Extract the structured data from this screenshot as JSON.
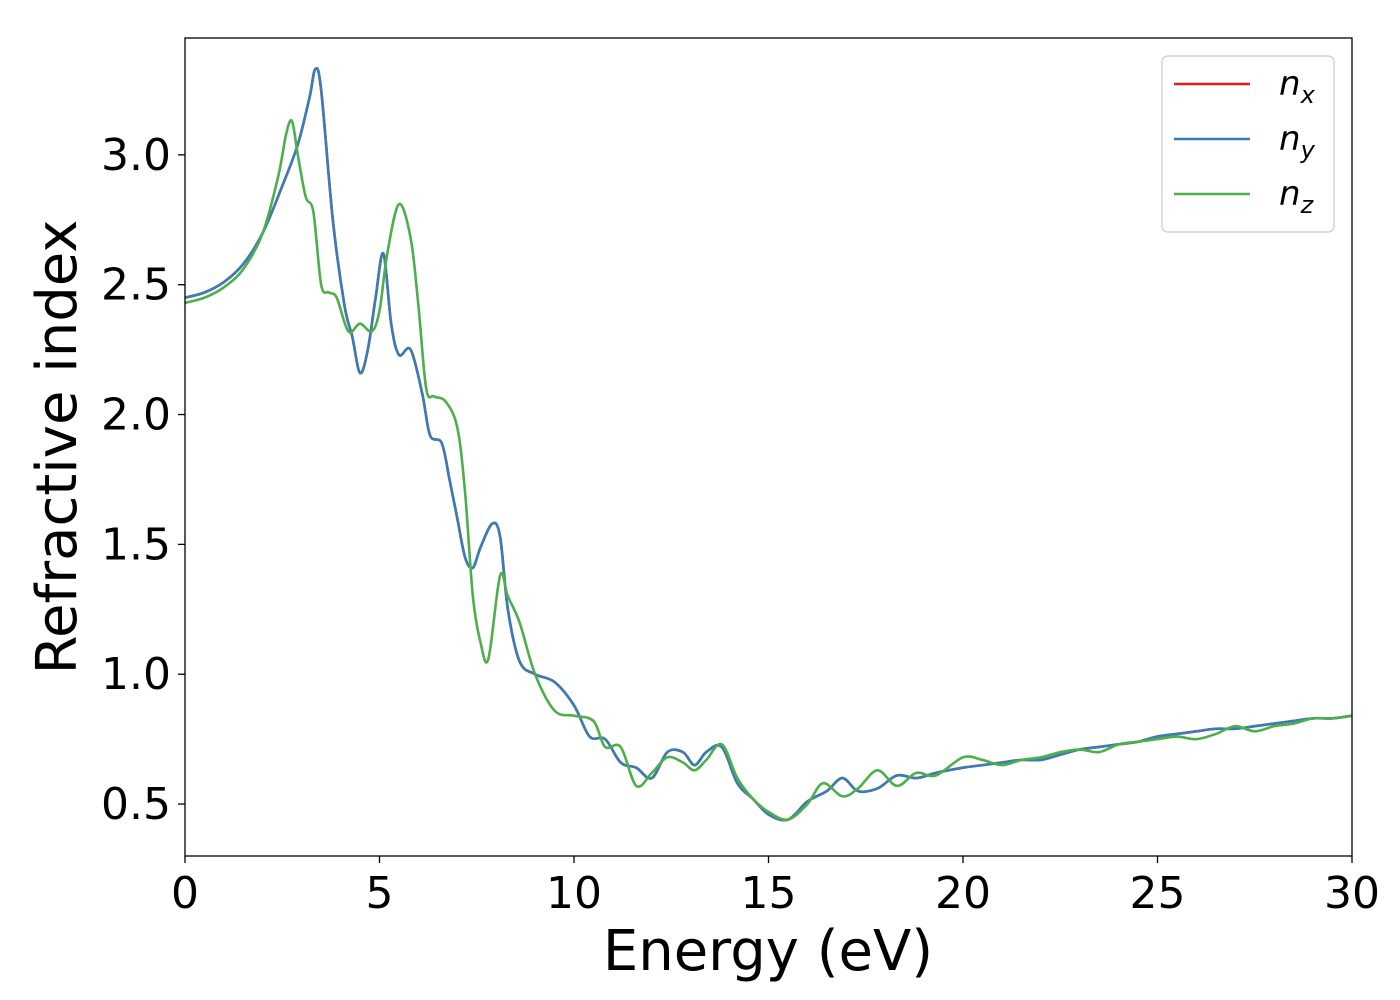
{
  "chart_data": {
    "type": "line",
    "title": "",
    "xlabel": "Energy (eV)",
    "ylabel": "Refractive index",
    "xlim": [
      0,
      30
    ],
    "ylim": [
      0.3,
      3.45
    ],
    "xticks": [
      0,
      5,
      10,
      15,
      20,
      25,
      30
    ],
    "xtick_labels": [
      "0",
      "5",
      "10",
      "15",
      "20",
      "25",
      "30"
    ],
    "yticks": [
      0.5,
      1.0,
      1.5,
      2.0,
      2.5,
      3.0
    ],
    "ytick_labels": [
      "0.5",
      "1.0",
      "1.5",
      "2.0",
      "2.5",
      "3.0"
    ],
    "grid": false,
    "legend_position": "top-right",
    "series": [
      {
        "name": "n",
        "subscript": "x",
        "color": "#e41a1c",
        "x": [
          0,
          0.5,
          1.0,
          1.5,
          2.0,
          2.5,
          2.9,
          3.2,
          3.35,
          3.5,
          3.8,
          4.1,
          4.3,
          4.5,
          4.7,
          4.9,
          5.1,
          5.3,
          5.5,
          5.8,
          6.1,
          6.3,
          6.6,
          6.8,
          7.0,
          7.2,
          7.4,
          7.6,
          7.9,
          8.1,
          8.3,
          8.6,
          9.0,
          9.5,
          10.0,
          10.4,
          10.8,
          11.2,
          11.6,
          12.0,
          12.4,
          12.8,
          13.1,
          13.4,
          13.8,
          14.2,
          14.6,
          15.0,
          15.5,
          16.0,
          16.5,
          16.9,
          17.3,
          17.8,
          18.3,
          18.8,
          19.3,
          20.0,
          20.5,
          21.0,
          21.5,
          22.0,
          22.5,
          23.0,
          23.5,
          24.0,
          24.5,
          25.0,
          25.5,
          26.0,
          26.5,
          27.0,
          27.5,
          28.0,
          28.5,
          29.0,
          29.5,
          30.0
        ],
        "y": [
          2.45,
          2.47,
          2.51,
          2.58,
          2.7,
          2.88,
          3.04,
          3.22,
          3.33,
          3.25,
          2.75,
          2.42,
          2.3,
          2.16,
          2.25,
          2.45,
          2.62,
          2.35,
          2.23,
          2.25,
          2.08,
          1.92,
          1.89,
          1.75,
          1.6,
          1.45,
          1.41,
          1.49,
          1.58,
          1.53,
          1.25,
          1.05,
          1.0,
          0.97,
          0.88,
          0.76,
          0.75,
          0.66,
          0.64,
          0.6,
          0.7,
          0.7,
          0.65,
          0.7,
          0.72,
          0.58,
          0.52,
          0.46,
          0.44,
          0.51,
          0.55,
          0.6,
          0.55,
          0.56,
          0.61,
          0.6,
          0.62,
          0.64,
          0.65,
          0.66,
          0.67,
          0.67,
          0.69,
          0.71,
          0.72,
          0.73,
          0.74,
          0.76,
          0.77,
          0.78,
          0.79,
          0.79,
          0.8,
          0.81,
          0.82,
          0.83,
          0.83,
          0.84
        ]
      },
      {
        "name": "n",
        "subscript": "y",
        "color": "#377eb8",
        "x": [
          0,
          0.5,
          1.0,
          1.5,
          2.0,
          2.5,
          2.9,
          3.2,
          3.35,
          3.5,
          3.8,
          4.1,
          4.3,
          4.5,
          4.7,
          4.9,
          5.1,
          5.3,
          5.5,
          5.8,
          6.1,
          6.3,
          6.6,
          6.8,
          7.0,
          7.2,
          7.4,
          7.6,
          7.9,
          8.1,
          8.3,
          8.6,
          9.0,
          9.5,
          10.0,
          10.4,
          10.8,
          11.2,
          11.6,
          12.0,
          12.4,
          12.8,
          13.1,
          13.4,
          13.8,
          14.2,
          14.6,
          15.0,
          15.5,
          16.0,
          16.5,
          16.9,
          17.3,
          17.8,
          18.3,
          18.8,
          19.3,
          20.0,
          20.5,
          21.0,
          21.5,
          22.0,
          22.5,
          23.0,
          23.5,
          24.0,
          24.5,
          25.0,
          25.5,
          26.0,
          26.5,
          27.0,
          27.5,
          28.0,
          28.5,
          29.0,
          29.5,
          30.0
        ],
        "y": [
          2.45,
          2.47,
          2.51,
          2.58,
          2.7,
          2.88,
          3.04,
          3.22,
          3.33,
          3.25,
          2.75,
          2.42,
          2.3,
          2.16,
          2.25,
          2.45,
          2.62,
          2.35,
          2.23,
          2.25,
          2.08,
          1.92,
          1.89,
          1.75,
          1.6,
          1.45,
          1.41,
          1.49,
          1.58,
          1.53,
          1.25,
          1.05,
          1.0,
          0.97,
          0.88,
          0.76,
          0.75,
          0.66,
          0.64,
          0.6,
          0.7,
          0.7,
          0.65,
          0.7,
          0.72,
          0.58,
          0.52,
          0.46,
          0.44,
          0.51,
          0.55,
          0.6,
          0.55,
          0.56,
          0.61,
          0.6,
          0.62,
          0.64,
          0.65,
          0.66,
          0.67,
          0.67,
          0.69,
          0.71,
          0.72,
          0.73,
          0.74,
          0.76,
          0.77,
          0.78,
          0.79,
          0.79,
          0.8,
          0.81,
          0.82,
          0.83,
          0.83,
          0.84
        ]
      },
      {
        "name": "n",
        "subscript": "z",
        "color": "#4daf4a",
        "x": [
          0,
          0.5,
          1.0,
          1.5,
          2.0,
          2.4,
          2.6,
          2.75,
          2.9,
          3.1,
          3.3,
          3.5,
          3.7,
          3.9,
          4.2,
          4.5,
          4.8,
          5.0,
          5.2,
          5.5,
          5.8,
          6.0,
          6.2,
          6.4,
          6.7,
          7.0,
          7.2,
          7.4,
          7.6,
          7.8,
          8.1,
          8.3,
          8.6,
          9.0,
          9.5,
          10.0,
          10.5,
          10.8,
          11.2,
          11.6,
          12.0,
          12.4,
          12.8,
          13.1,
          13.4,
          13.8,
          14.2,
          14.6,
          15.0,
          15.5,
          16.0,
          16.4,
          16.9,
          17.3,
          17.8,
          18.3,
          18.8,
          19.3,
          20.0,
          20.5,
          21.0,
          21.5,
          22.0,
          22.5,
          23.0,
          23.5,
          24.0,
          24.5,
          25.0,
          25.5,
          26.0,
          26.5,
          27.0,
          27.5,
          28.0,
          28.5,
          29.0,
          29.5,
          30.0
        ],
        "y": [
          2.43,
          2.45,
          2.49,
          2.56,
          2.7,
          2.92,
          3.08,
          3.13,
          3.0,
          2.84,
          2.78,
          2.5,
          2.47,
          2.45,
          2.32,
          2.35,
          2.32,
          2.4,
          2.62,
          2.81,
          2.68,
          2.42,
          2.1,
          2.07,
          2.05,
          1.95,
          1.7,
          1.3,
          1.12,
          1.06,
          1.38,
          1.3,
          1.2,
          1.0,
          0.86,
          0.84,
          0.82,
          0.72,
          0.72,
          0.57,
          0.62,
          0.68,
          0.66,
          0.63,
          0.67,
          0.73,
          0.6,
          0.52,
          0.47,
          0.44,
          0.5,
          0.58,
          0.53,
          0.56,
          0.63,
          0.57,
          0.62,
          0.61,
          0.68,
          0.67,
          0.65,
          0.67,
          0.68,
          0.7,
          0.71,
          0.7,
          0.73,
          0.74,
          0.75,
          0.76,
          0.75,
          0.77,
          0.8,
          0.78,
          0.8,
          0.81,
          0.83,
          0.83,
          0.84
        ]
      }
    ]
  }
}
